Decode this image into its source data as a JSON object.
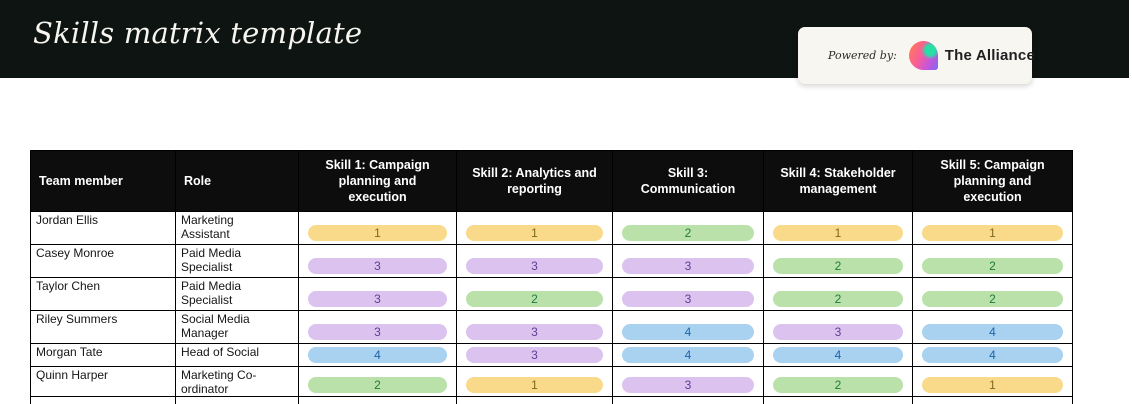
{
  "page": {
    "title": "Skills matrix template"
  },
  "badge": {
    "powered_by_label": "Powered by:",
    "brand": "The Alliance"
  },
  "table": {
    "columns": [
      {
        "label": "Team member"
      },
      {
        "label": "Role"
      },
      {
        "label": "Skill 1: Campaign planning and execution"
      },
      {
        "label": "Skill 2: Analytics and reporting"
      },
      {
        "label": "Skill 3: Communication"
      },
      {
        "label": "Skill 4: Stakeholder management"
      },
      {
        "label": "Skill 5: Campaign planning and execution"
      }
    ],
    "rows": [
      {
        "name": "Jordan Ellis",
        "role": "Marketing Assistant",
        "skills": [
          1,
          1,
          2,
          1,
          1
        ]
      },
      {
        "name": "Casey Monroe",
        "role": "Paid Media Specialist",
        "skills": [
          3,
          3,
          3,
          2,
          2
        ]
      },
      {
        "name": "Taylor Chen",
        "role": "Paid Media Specialist",
        "skills": [
          3,
          2,
          3,
          2,
          2
        ]
      },
      {
        "name": "Riley Summers",
        "role": "Social Media Manager",
        "skills": [
          3,
          3,
          4,
          3,
          4
        ]
      },
      {
        "name": "Morgan Tate",
        "role": "Head of Social",
        "skills": [
          4,
          3,
          4,
          4,
          4
        ]
      },
      {
        "name": "Quinn Harper",
        "role": "Marketing Co-ordinator",
        "skills": [
          2,
          1,
          3,
          2,
          1
        ]
      }
    ],
    "rating_colors": {
      "1": {
        "bg": "#f9da8b",
        "text": "#7c671e"
      },
      "2": {
        "bg": "#bbe1aa",
        "text": "#1e7b3c"
      },
      "3": {
        "bg": "#dcc3ef",
        "text": "#5c3d94"
      },
      "4": {
        "bg": "#a8d2f0",
        "text": "#2163ae"
      }
    },
    "colors": {
      "banner_bg": "#0d1412",
      "header_bg": "#0d0d0d",
      "badge_bg": "#f8f6f1"
    }
  }
}
